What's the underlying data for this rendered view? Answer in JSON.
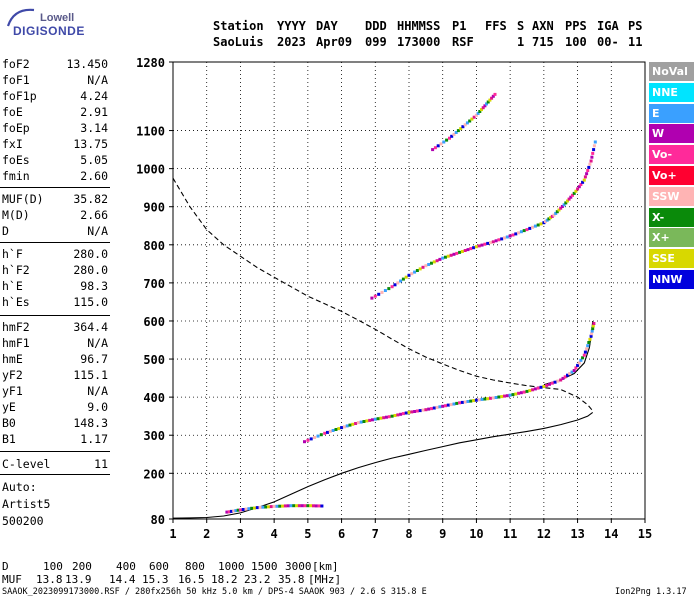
{
  "logo": {
    "line1": "Lowell",
    "line2": "DIGISONDE"
  },
  "header": {
    "row1": [
      "Station",
      "YYYY",
      "DAY",
      "DDD",
      "HHMMSS",
      "P1",
      "FFS",
      "S",
      "AXN",
      "PPS",
      "IGA",
      "PS"
    ],
    "row2": [
      "SaoLuis",
      "2023",
      "Apr09",
      "099",
      "173000",
      "RSF",
      "1",
      "715",
      "100",
      "00-",
      "11"
    ]
  },
  "params": [
    {
      "k": "foF2",
      "v": "13.450"
    },
    {
      "k": "foF1",
      "v": "N/A"
    },
    {
      "k": "foF1p",
      "v": "4.24"
    },
    {
      "k": "foE",
      "v": "2.91"
    },
    {
      "k": "foEp",
      "v": "3.14"
    },
    {
      "k": "fxI",
      "v": "13.75"
    },
    {
      "k": "foEs",
      "v": "5.05"
    },
    {
      "k": "fmin",
      "v": "2.60"
    },
    {
      "k": "MUF(D)",
      "v": "35.82"
    },
    {
      "k": "M(D)",
      "v": "2.66"
    },
    {
      "k": "D",
      "v": "N/A"
    },
    {
      "k": "h`F",
      "v": "280.0"
    },
    {
      "k": "h`F2",
      "v": "280.0"
    },
    {
      "k": "h`E",
      "v": "98.3"
    },
    {
      "k": "h`Es",
      "v": "115.0"
    },
    {
      "k": "hmF2",
      "v": "364.4"
    },
    {
      "k": "hmF1",
      "v": "N/A"
    },
    {
      "k": "hmE",
      "v": "96.7"
    },
    {
      "k": "yF2",
      "v": "115.1"
    },
    {
      "k": "yF1",
      "v": "N/A"
    },
    {
      "k": "yE",
      "v": "9.0"
    },
    {
      "k": "B0",
      "v": "148.3"
    },
    {
      "k": "B1",
      "v": "1.17"
    },
    {
      "k": "C-level",
      "v": "11"
    }
  ],
  "auto": {
    "label": "Auto:",
    "artist": "Artist5",
    "code": "500200"
  },
  "legend": [
    {
      "label": "NoVal",
      "color": "#a0a0a0"
    },
    {
      "label": "NNE",
      "color": "#00e4ff"
    },
    {
      "label": "E",
      "color": "#3aa0ff"
    },
    {
      "label": "W",
      "color": "#b000b0"
    },
    {
      "label": "Vo-",
      "color": "#ff2a9a"
    },
    {
      "label": "Vo+",
      "color": "#ff0030"
    },
    {
      "label": "SSW",
      "color": "#ffb4b4"
    },
    {
      "label": "X-",
      "color": "#0a8a0a"
    },
    {
      "label": "X+",
      "color": "#7ab85a"
    },
    {
      "label": "SSE",
      "color": "#d8d800"
    },
    {
      "label": "NNW",
      "color": "#0000dd"
    }
  ],
  "muf_table": {
    "d_label": "D",
    "d_values": [
      "100",
      "200",
      "400",
      "600",
      "800",
      "1000",
      "1500",
      "3000"
    ],
    "d_unit": "[km]",
    "m_label": "MUF",
    "m_values": [
      "13.8",
      "13.9",
      "14.4",
      "15.3",
      "16.5",
      "18.2",
      "23.2",
      "35.8"
    ],
    "m_unit": "[MHz]"
  },
  "footer": {
    "left": "SAAOK_2023099173000.RSF / 280fx256h 50 kHz 5.0 km / DPS-4 SAAOK 903 / 2.6 S 315.8 E",
    "right": "Ion2Png 1.3.17"
  },
  "chart_data": {
    "type": "scatter",
    "xlim": [
      1,
      15
    ],
    "ylim": [
      80,
      1280
    ],
    "x_ticks": [
      1,
      2,
      3,
      4,
      5,
      6,
      7,
      8,
      9,
      10,
      11,
      12,
      13,
      14,
      15
    ],
    "y_ticks": [
      80,
      200,
      300,
      400,
      500,
      600,
      700,
      800,
      900,
      1000,
      1100,
      1280
    ],
    "grid": true,
    "series": [
      {
        "name": "dashed",
        "style": "dashed",
        "points": [
          [
            1.0,
            975
          ],
          [
            1.5,
            900
          ],
          [
            2.0,
            840
          ],
          [
            2.5,
            800
          ],
          [
            3,
            770
          ],
          [
            3.5,
            740
          ],
          [
            4,
            715
          ],
          [
            4.5,
            690
          ],
          [
            5,
            665
          ],
          [
            5.5,
            645
          ],
          [
            6,
            625
          ],
          [
            6.5,
            602
          ],
          [
            7,
            578
          ],
          [
            7.5,
            552
          ],
          [
            8,
            527
          ],
          [
            8.5,
            505
          ],
          [
            9,
            487
          ],
          [
            9.5,
            470
          ],
          [
            10,
            455
          ],
          [
            10.5,
            445
          ],
          [
            11,
            437
          ],
          [
            11.5,
            430
          ],
          [
            12,
            425
          ],
          [
            12.5,
            420
          ],
          [
            13,
            400
          ],
          [
            13.3,
            380
          ],
          [
            13.45,
            364
          ]
        ]
      },
      {
        "name": "solid-lower",
        "style": "solid",
        "points": [
          [
            1.0,
            82
          ],
          [
            1.5,
            83
          ],
          [
            2.0,
            84
          ],
          [
            2.5,
            88
          ],
          [
            3,
            96
          ],
          [
            3.5,
            110
          ],
          [
            4,
            125
          ],
          [
            4.5,
            145
          ],
          [
            5,
            165
          ],
          [
            5.5,
            183
          ],
          [
            6,
            200
          ],
          [
            6.5,
            215
          ],
          [
            7,
            228
          ],
          [
            7.5,
            240
          ],
          [
            8,
            250
          ],
          [
            8.5,
            260
          ],
          [
            9,
            270
          ],
          [
            9.5,
            280
          ],
          [
            10,
            288
          ],
          [
            10.5,
            296
          ],
          [
            11,
            303
          ],
          [
            11.5,
            310
          ],
          [
            12,
            318
          ],
          [
            12.5,
            328
          ],
          [
            13,
            340
          ],
          [
            13.3,
            350
          ],
          [
            13.45,
            360
          ]
        ]
      },
      {
        "name": "solid-upper",
        "style": "solid",
        "points": [
          [
            12.0,
            433
          ],
          [
            12.5,
            445
          ],
          [
            12.9,
            462
          ],
          [
            13.2,
            490
          ],
          [
            13.35,
            530
          ],
          [
            13.42,
            570
          ],
          [
            13.45,
            600
          ]
        ]
      },
      {
        "name": "F2-o",
        "style": "trace",
        "points": [
          [
            4.9,
            283
          ],
          [
            5.5,
            305
          ],
          [
            6,
            320
          ],
          [
            6.5,
            333
          ],
          [
            7,
            342
          ],
          [
            7.5,
            350
          ],
          [
            8,
            360
          ],
          [
            8.5,
            367
          ],
          [
            9,
            376
          ],
          [
            9.5,
            385
          ],
          [
            10,
            392
          ],
          [
            10.5,
            398
          ],
          [
            11,
            405
          ],
          [
            11.5,
            415
          ],
          [
            12,
            428
          ],
          [
            12.5,
            445
          ],
          [
            12.9,
            470
          ],
          [
            13.2,
            510
          ],
          [
            13.4,
            560
          ],
          [
            13.5,
            600
          ]
        ]
      },
      {
        "name": "F2-2hop",
        "style": "trace",
        "points": [
          [
            6.9,
            660
          ],
          [
            7.5,
            690
          ],
          [
            8,
            720
          ],
          [
            8.5,
            745
          ],
          [
            9,
            765
          ],
          [
            9.5,
            780
          ],
          [
            10,
            795
          ],
          [
            10.5,
            808
          ],
          [
            11,
            823
          ],
          [
            11.5,
            840
          ],
          [
            12,
            858
          ],
          [
            12.3,
            878
          ],
          [
            12.6,
            905
          ],
          [
            12.9,
            935
          ],
          [
            13.2,
            970
          ],
          [
            13.4,
            1020
          ],
          [
            13.55,
            1080
          ]
        ]
      },
      {
        "name": "Es",
        "style": "trace",
        "points": [
          [
            2.6,
            98
          ],
          [
            3,
            104
          ],
          [
            3.5,
            110
          ],
          [
            4,
            113
          ],
          [
            4.5,
            115
          ],
          [
            5,
            115
          ],
          [
            5.5,
            114
          ]
        ]
      },
      {
        "name": "F2-3hop",
        "style": "trace",
        "points": [
          [
            8.7,
            1050
          ],
          [
            9.2,
            1080
          ],
          [
            9.6,
            1110
          ],
          [
            10,
            1140
          ],
          [
            10.3,
            1170
          ],
          [
            10.6,
            1200
          ]
        ]
      }
    ]
  }
}
